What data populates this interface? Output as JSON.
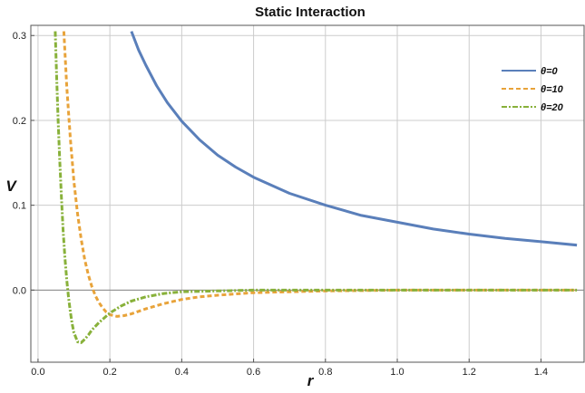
{
  "chart_data": {
    "type": "line",
    "title": "Static Interaction",
    "xlabel": "r",
    "ylabel": "V",
    "xlim": [
      -0.02,
      1.52
    ],
    "ylim": [
      -0.085,
      0.312
    ],
    "xticks": [
      0.0,
      0.2,
      0.4,
      0.6,
      0.8,
      1.0,
      1.2,
      1.4
    ],
    "xtick_labels": [
      "0.0",
      "0.2",
      "0.4",
      "0.6",
      "0.8",
      "1.0",
      "1.2",
      "1.4"
    ],
    "yticks": [
      0.0,
      0.1,
      0.2,
      0.3
    ],
    "ytick_labels": [
      "0.0",
      "0.1",
      "0.2",
      "0.3"
    ],
    "grid": true,
    "legend_position": "top-right",
    "series": [
      {
        "name": "θ=0",
        "color": "#5a7fba",
        "style": "solid",
        "x": [
          0.26,
          0.28,
          0.3,
          0.33,
          0.36,
          0.4,
          0.45,
          0.5,
          0.55,
          0.6,
          0.7,
          0.8,
          0.9,
          1.0,
          1.1,
          1.2,
          1.3,
          1.4,
          1.5
        ],
        "y": [
          0.305,
          0.283,
          0.265,
          0.241,
          0.221,
          0.199,
          0.177,
          0.159,
          0.145,
          0.133,
          0.114,
          0.1,
          0.088,
          0.08,
          0.072,
          0.066,
          0.061,
          0.057,
          0.053
        ]
      },
      {
        "name": "θ=10",
        "color": "#e8a33a",
        "style": "dashed",
        "x": [
          0.072,
          0.08,
          0.09,
          0.1,
          0.11,
          0.12,
          0.13,
          0.14,
          0.15,
          0.16,
          0.17,
          0.18,
          0.19,
          0.2,
          0.22,
          0.24,
          0.26,
          0.28,
          0.3,
          0.35,
          0.4,
          0.45,
          0.5,
          0.6,
          0.7,
          0.8,
          1.0,
          1.2,
          1.5
        ],
        "y": [
          0.305,
          0.24,
          0.178,
          0.128,
          0.09,
          0.06,
          0.036,
          0.018,
          0.004,
          -0.007,
          -0.015,
          -0.021,
          -0.026,
          -0.029,
          -0.031,
          -0.03,
          -0.028,
          -0.025,
          -0.022,
          -0.016,
          -0.011,
          -0.008,
          -0.006,
          -0.003,
          -0.002,
          -0.001,
          0.0,
          0.0,
          0.0
        ]
      },
      {
        "name": "θ=20",
        "color": "#88b13a",
        "style": "dashdot",
        "x": [
          0.048,
          0.052,
          0.056,
          0.06,
          0.065,
          0.07,
          0.075,
          0.08,
          0.085,
          0.09,
          0.095,
          0.1,
          0.11,
          0.12,
          0.13,
          0.14,
          0.15,
          0.17,
          0.2,
          0.23,
          0.26,
          0.3,
          0.35,
          0.4,
          0.5,
          0.6,
          0.8,
          1.0,
          1.2,
          1.5
        ],
        "y": [
          0.305,
          0.25,
          0.2,
          0.157,
          0.11,
          0.07,
          0.038,
          0.012,
          -0.009,
          -0.026,
          -0.04,
          -0.05,
          -0.061,
          -0.062,
          -0.058,
          -0.053,
          -0.047,
          -0.038,
          -0.027,
          -0.019,
          -0.013,
          -0.008,
          -0.004,
          -0.002,
          -0.001,
          0.0,
          0.0,
          0.0,
          0.0,
          0.0
        ]
      }
    ]
  }
}
